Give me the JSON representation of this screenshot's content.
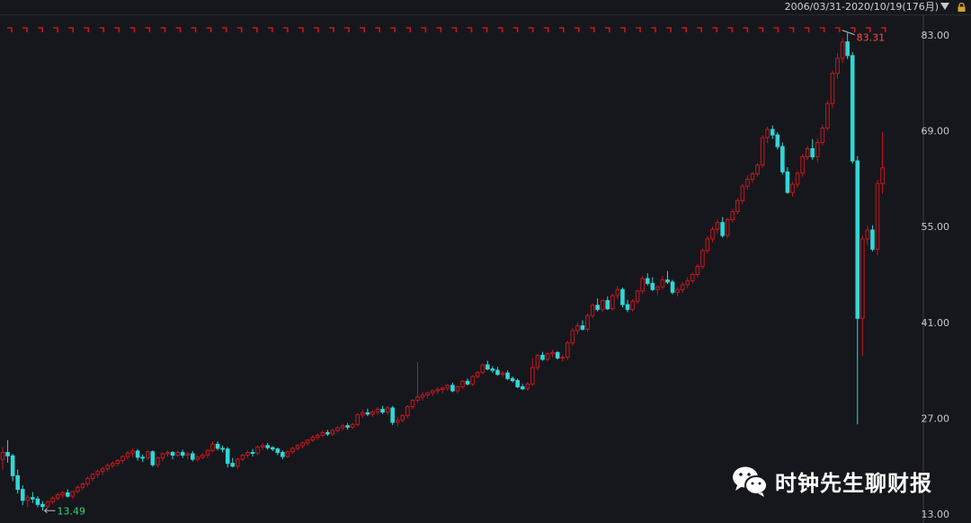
{
  "header": {
    "range_label": "2006/03/31-2020/10/19(176月)",
    "dropdown_icon": "chevron-down-icon",
    "lock_icon": "lock-icon"
  },
  "watermark": {
    "text": "时钟先生聊财报",
    "icon": "wechat-icon"
  },
  "colors": {
    "up": "#c8161e",
    "down": "#32d6d6",
    "background": "#15171c",
    "grid": "#2b2d33",
    "max_label": "#ff4a4a",
    "min_label": "#3ad27a"
  },
  "chart_data": {
    "type": "candlestick",
    "interval": "monthly",
    "count": 176,
    "ylim": [
      13.0,
      83.0
    ],
    "y_ticks": [
      "83.00",
      "69.00",
      "55.00",
      "41.00",
      "27.00",
      "13.00"
    ],
    "annotations": {
      "max_label": "83.31",
      "min_label": "13.49",
      "max": 83.31,
      "min": 13.49
    },
    "candles": [
      [
        21.0,
        22.8,
        19.5,
        22.0
      ],
      [
        22.0,
        23.8,
        20.5,
        21.5
      ],
      [
        21.5,
        21.8,
        17.8,
        18.6
      ],
      [
        18.6,
        19.5,
        16.0,
        16.6
      ],
      [
        16.6,
        17.2,
        14.3,
        15.0
      ],
      [
        15.0,
        15.8,
        14.0,
        15.4
      ],
      [
        15.4,
        16.2,
        14.6,
        15.2
      ],
      [
        15.2,
        15.6,
        14.0,
        14.4
      ],
      [
        14.4,
        14.9,
        13.49,
        14.1
      ],
      [
        14.1,
        15.0,
        13.8,
        14.8
      ],
      [
        14.8,
        15.6,
        14.4,
        15.3
      ],
      [
        15.3,
        16.1,
        15.0,
        15.8
      ],
      [
        15.8,
        16.4,
        15.3,
        16.1
      ],
      [
        16.1,
        16.6,
        15.4,
        15.6
      ],
      [
        15.6,
        16.4,
        15.2,
        16.3
      ],
      [
        16.3,
        17.2,
        16.0,
        16.9
      ],
      [
        16.9,
        17.6,
        16.5,
        17.4
      ],
      [
        17.4,
        18.5,
        17.0,
        18.2
      ],
      [
        18.2,
        19.0,
        17.7,
        18.8
      ],
      [
        18.8,
        19.5,
        18.3,
        19.2
      ],
      [
        19.2,
        19.9,
        18.7,
        19.6
      ],
      [
        19.6,
        20.4,
        19.2,
        20.1
      ],
      [
        20.1,
        20.7,
        19.7,
        20.4
      ],
      [
        20.4,
        21.0,
        20.0,
        20.8
      ],
      [
        20.8,
        21.6,
        20.4,
        21.4
      ],
      [
        21.4,
        22.2,
        21.0,
        21.9
      ],
      [
        21.9,
        22.6,
        21.3,
        22.2
      ],
      [
        22.2,
        22.5,
        20.8,
        21.3
      ],
      [
        21.3,
        21.7,
        20.6,
        21.2
      ],
      [
        21.2,
        22.4,
        20.9,
        22.1
      ],
      [
        22.1,
        22.3,
        19.9,
        20.2
      ],
      [
        20.2,
        21.4,
        19.8,
        21.2
      ],
      [
        21.2,
        22.0,
        20.7,
        21.8
      ],
      [
        21.8,
        22.3,
        21.4,
        22.0
      ],
      [
        22.0,
        22.2,
        21.0,
        21.6
      ],
      [
        21.6,
        22.3,
        21.3,
        22.0
      ],
      [
        22.0,
        22.4,
        21.2,
        21.6
      ],
      [
        21.6,
        22.1,
        21.0,
        21.8
      ],
      [
        21.8,
        22.2,
        20.7,
        21.0
      ],
      [
        21.0,
        21.6,
        20.6,
        21.3
      ],
      [
        21.3,
        21.9,
        21.0,
        21.6
      ],
      [
        21.6,
        22.5,
        21.2,
        22.3
      ],
      [
        22.3,
        23.6,
        22.0,
        23.2
      ],
      [
        23.2,
        23.6,
        22.3,
        22.6
      ],
      [
        22.6,
        23.0,
        22.0,
        22.5
      ],
      [
        22.5,
        22.8,
        19.8,
        20.4
      ],
      [
        20.4,
        21.2,
        19.8,
        20.0
      ],
      [
        20.0,
        21.2,
        19.6,
        21.0
      ],
      [
        21.0,
        21.8,
        20.7,
        21.6
      ],
      [
        21.6,
        22.3,
        21.2,
        22.0
      ],
      [
        22.0,
        22.5,
        21.4,
        21.9
      ],
      [
        21.9,
        23.0,
        21.6,
        22.8
      ],
      [
        22.8,
        23.4,
        22.3,
        23.0
      ],
      [
        23.0,
        23.4,
        22.4,
        22.7
      ],
      [
        22.7,
        22.9,
        22.2,
        22.5
      ],
      [
        22.5,
        22.7,
        21.6,
        22.0
      ],
      [
        22.0,
        22.3,
        21.0,
        21.4
      ],
      [
        21.4,
        22.3,
        21.2,
        22.1
      ],
      [
        22.1,
        22.8,
        21.8,
        22.6
      ],
      [
        22.6,
        23.2,
        22.3,
        23.0
      ],
      [
        23.0,
        23.6,
        22.6,
        23.4
      ],
      [
        23.4,
        24.0,
        23.0,
        23.8
      ],
      [
        23.8,
        24.5,
        23.5,
        24.2
      ],
      [
        24.2,
        24.8,
        23.8,
        24.5
      ],
      [
        24.5,
        25.2,
        24.2,
        24.9
      ],
      [
        24.9,
        25.3,
        24.4,
        24.7
      ],
      [
        24.7,
        25.5,
        24.4,
        25.2
      ],
      [
        25.2,
        25.8,
        24.9,
        25.6
      ],
      [
        25.6,
        26.2,
        25.2,
        25.9
      ],
      [
        25.9,
        26.3,
        25.3,
        25.7
      ],
      [
        25.7,
        26.3,
        25.4,
        26.1
      ],
      [
        26.1,
        27.8,
        25.8,
        27.5
      ],
      [
        27.5,
        28.3,
        27.0,
        27.8
      ],
      [
        27.8,
        28.4,
        27.3,
        27.6
      ],
      [
        27.6,
        28.2,
        27.2,
        27.9
      ],
      [
        27.9,
        28.6,
        27.5,
        28.3
      ],
      [
        28.3,
        28.8,
        27.6,
        27.9
      ],
      [
        27.9,
        28.8,
        27.5,
        28.5
      ],
      [
        28.5,
        28.8,
        26.0,
        26.4
      ],
      [
        26.4,
        27.2,
        25.8,
        26.7
      ],
      [
        26.7,
        27.6,
        26.4,
        27.4
      ],
      [
        27.4,
        28.9,
        27.0,
        28.7
      ],
      [
        28.7,
        29.8,
        28.3,
        29.6
      ],
      [
        29.6,
        35.2,
        29.2,
        30.1
      ],
      [
        30.1,
        30.8,
        29.6,
        30.4
      ],
      [
        30.4,
        30.9,
        29.9,
        30.7
      ],
      [
        30.7,
        31.2,
        30.2,
        31.0
      ],
      [
        31.0,
        31.5,
        30.5,
        31.2
      ],
      [
        31.2,
        31.6,
        30.6,
        31.4
      ],
      [
        31.4,
        32.0,
        31.0,
        31.8
      ],
      [
        31.8,
        32.2,
        30.8,
        31.0
      ],
      [
        31.0,
        31.8,
        30.6,
        31.6
      ],
      [
        31.6,
        32.6,
        31.3,
        32.4
      ],
      [
        32.4,
        32.8,
        31.8,
        32.0
      ],
      [
        32.0,
        33.3,
        31.7,
        33.1
      ],
      [
        33.1,
        33.9,
        32.8,
        33.7
      ],
      [
        33.7,
        35.0,
        33.4,
        34.8
      ],
      [
        34.8,
        35.4,
        34.0,
        34.2
      ],
      [
        34.2,
        34.6,
        33.6,
        34.0
      ],
      [
        34.0,
        34.5,
        33.2,
        33.4
      ],
      [
        33.4,
        33.9,
        33.0,
        33.6
      ],
      [
        33.6,
        34.0,
        32.6,
        32.8
      ],
      [
        32.8,
        33.1,
        32.2,
        32.5
      ],
      [
        32.5,
        32.8,
        31.4,
        31.6
      ],
      [
        31.6,
        32.0,
        31.1,
        31.3
      ],
      [
        31.3,
        32.3,
        31.0,
        32.0
      ],
      [
        32.0,
        35.8,
        31.7,
        34.4
      ],
      [
        34.4,
        36.4,
        34.0,
        36.2
      ],
      [
        36.2,
        36.7,
        35.4,
        35.6
      ],
      [
        35.6,
        36.6,
        35.3,
        36.4
      ],
      [
        36.4,
        37.0,
        35.9,
        36.6
      ],
      [
        36.6,
        36.8,
        35.6,
        35.8
      ],
      [
        35.8,
        36.3,
        35.3,
        35.9
      ],
      [
        35.9,
        38.3,
        35.5,
        38.0
      ],
      [
        38.0,
        40.2,
        37.6,
        39.8
      ],
      [
        39.8,
        41.0,
        39.2,
        40.5
      ],
      [
        40.5,
        41.3,
        39.8,
        40.0
      ],
      [
        40.0,
        42.3,
        39.6,
        42.0
      ],
      [
        42.0,
        43.8,
        41.6,
        43.5
      ],
      [
        43.5,
        44.5,
        42.6,
        42.9
      ],
      [
        42.9,
        44.4,
        42.5,
        44.2
      ],
      [
        44.2,
        44.8,
        42.8,
        43.0
      ],
      [
        43.0,
        45.2,
        42.7,
        44.9
      ],
      [
        44.9,
        46.3,
        44.4,
        45.8
      ],
      [
        45.8,
        46.1,
        43.2,
        43.6
      ],
      [
        43.6,
        44.3,
        42.5,
        42.9
      ],
      [
        42.9,
        44.4,
        42.6,
        44.1
      ],
      [
        44.1,
        45.8,
        43.7,
        45.6
      ],
      [
        45.6,
        47.8,
        45.2,
        47.4
      ],
      [
        47.4,
        48.2,
        46.4,
        46.7
      ],
      [
        46.7,
        47.6,
        45.6,
        45.8
      ],
      [
        45.8,
        46.4,
        45.0,
        46.2
      ],
      [
        46.2,
        47.8,
        45.8,
        47.2
      ],
      [
        47.2,
        48.5,
        46.6,
        46.9
      ],
      [
        46.9,
        47.2,
        45.1,
        45.4
      ],
      [
        45.4,
        46.2,
        44.8,
        45.8
      ],
      [
        45.8,
        46.9,
        45.3,
        46.5
      ],
      [
        46.5,
        47.6,
        46.0,
        47.1
      ],
      [
        47.1,
        48.3,
        46.7,
        48.0
      ],
      [
        48.0,
        49.5,
        47.6,
        49.2
      ],
      [
        49.2,
        51.8,
        48.8,
        51.5
      ],
      [
        51.5,
        53.6,
        51.1,
        53.2
      ],
      [
        53.2,
        55.0,
        52.7,
        54.6
      ],
      [
        54.6,
        56.1,
        54.0,
        55.6
      ],
      [
        55.6,
        56.4,
        53.4,
        53.7
      ],
      [
        53.7,
        56.3,
        53.3,
        56.0
      ],
      [
        56.0,
        57.6,
        55.6,
        57.2
      ],
      [
        57.2,
        59.2,
        56.8,
        58.8
      ],
      [
        58.8,
        61.2,
        58.3,
        60.9
      ],
      [
        60.9,
        62.5,
        60.4,
        61.9
      ],
      [
        61.9,
        63.0,
        61.4,
        62.7
      ],
      [
        62.7,
        64.3,
        62.3,
        64.0
      ],
      [
        64.0,
        68.4,
        63.6,
        68.0
      ],
      [
        68.0,
        69.6,
        67.2,
        69.2
      ],
      [
        69.2,
        69.8,
        67.8,
        68.4
      ],
      [
        68.4,
        68.8,
        66.3,
        66.7
      ],
      [
        66.7,
        67.3,
        62.6,
        63.0
      ],
      [
        63.0,
        63.7,
        59.8,
        60.0
      ],
      [
        60.0,
        61.6,
        59.4,
        61.2
      ],
      [
        61.2,
        63.1,
        60.7,
        62.8
      ],
      [
        62.8,
        65.6,
        62.3,
        65.2
      ],
      [
        65.2,
        66.8,
        64.7,
        66.4
      ],
      [
        66.4,
        67.8,
        64.8,
        65.2
      ],
      [
        65.2,
        67.9,
        64.4,
        67.3
      ],
      [
        67.3,
        69.9,
        66.8,
        69.4
      ],
      [
        69.4,
        73.4,
        69.0,
        73.0
      ],
      [
        73.0,
        77.8,
        72.3,
        77.4
      ],
      [
        77.4,
        80.4,
        76.6,
        79.6
      ],
      [
        79.6,
        82.6,
        78.9,
        82.0
      ],
      [
        82.0,
        83.31,
        79.5,
        80.0
      ],
      [
        80.0,
        80.5,
        64.2,
        64.6
      ],
      [
        64.6,
        65.3,
        26.1,
        41.6
      ],
      [
        41.6,
        53.7,
        36.1,
        53.2
      ],
      [
        53.2,
        55.1,
        52.3,
        54.5
      ],
      [
        54.5,
        55.2,
        51.4,
        51.7
      ],
      [
        51.7,
        61.8,
        50.8,
        61.3
      ],
      [
        61.3,
        68.8,
        59.8,
        63.6
      ]
    ]
  }
}
